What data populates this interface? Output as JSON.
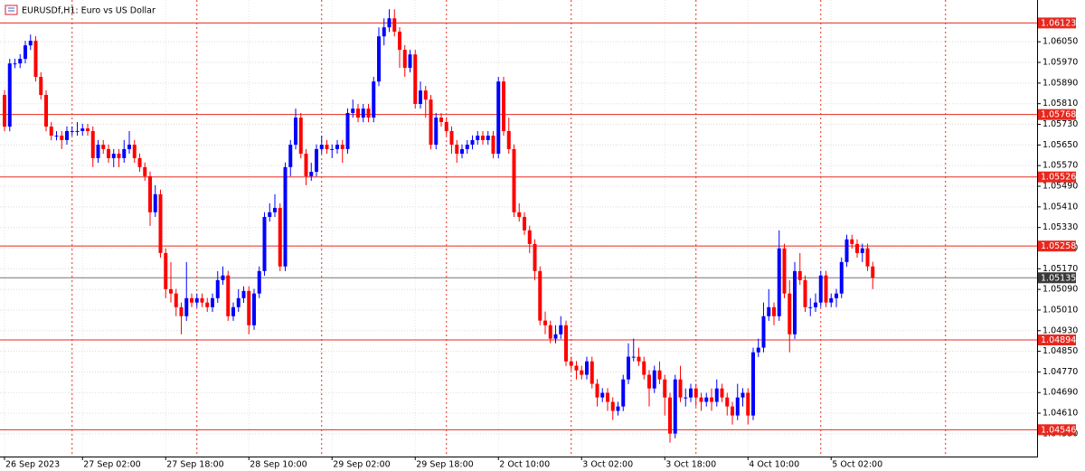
{
  "chart_data": {
    "type": "candlestick",
    "title": "EURUSDf,H1:  Euro vs US Dollar",
    "up_color": "#0000ff",
    "down_color": "#ff0000",
    "level_color": "#e8281e",
    "current_color": "#3a3a3a",
    "grid": true,
    "ylim": [
      1.04442,
      1.06212
    ],
    "yticks": [
      {
        "value": 1.0605,
        "label": "1.06050"
      },
      {
        "value": 1.0597,
        "label": "1.05970"
      },
      {
        "value": 1.0589,
        "label": "1.05890"
      },
      {
        "value": 1.0581,
        "label": "1.05810"
      },
      {
        "value": 1.0573,
        "label": "1.05730"
      },
      {
        "value": 1.0565,
        "label": "1.05650"
      },
      {
        "value": 1.0557,
        "label": "1.05570"
      },
      {
        "value": 1.0549,
        "label": "1.05490"
      },
      {
        "value": 1.0541,
        "label": "1.05410"
      },
      {
        "value": 1.0533,
        "label": "1.05330"
      },
      {
        "value": 1.0525,
        "label": "1.05250"
      },
      {
        "value": 1.0517,
        "label": "1.05170"
      },
      {
        "value": 1.0509,
        "label": "1.05090"
      },
      {
        "value": 1.0501,
        "label": "1.05010"
      },
      {
        "value": 1.0493,
        "label": "1.04930"
      },
      {
        "value": 1.0485,
        "label": "1.04850"
      },
      {
        "value": 1.0477,
        "label": "1.04770"
      },
      {
        "value": 1.0469,
        "label": "1.04690"
      },
      {
        "value": 1.0461,
        "label": "1.04610"
      },
      {
        "value": 1.0453,
        "label": "1.04530"
      }
    ],
    "levels": [
      1.06123,
      1.05768,
      1.05526,
      1.05258,
      1.04894,
      1.04546
    ],
    "current_price": 1.05135,
    "categories": [
      "26 Sep 2023",
      null,
      null,
      null,
      null,
      null,
      null,
      null,
      null,
      null,
      null,
      null,
      null,
      null,
      null,
      "27 Sep 02:00",
      null,
      null,
      null,
      null,
      null,
      null,
      null,
      null,
      null,
      null,
      null,
      null,
      null,
      null,
      null,
      "27 Sep 18:00",
      null,
      null,
      null,
      null,
      null,
      null,
      null,
      null,
      null,
      null,
      null,
      null,
      null,
      null,
      null,
      "28 Sep 10:00",
      null,
      null,
      null,
      null,
      null,
      null,
      null,
      null,
      null,
      null,
      null,
      null,
      null,
      null,
      null,
      "29 Sep 02:00",
      null,
      null,
      null,
      null,
      null,
      null,
      null,
      null,
      null,
      null,
      null,
      null,
      null,
      null,
      null,
      "29 Sep 18:00",
      null,
      null,
      null,
      null,
      null,
      null,
      null,
      null,
      null,
      null,
      null,
      null,
      null,
      null,
      null,
      "2 Oct 10:00",
      null,
      null,
      null,
      null,
      null,
      null,
      null,
      null,
      null,
      null,
      null,
      null,
      null,
      null,
      null,
      "3 Oct 02:00",
      null,
      null,
      null,
      null,
      null,
      null,
      null,
      null,
      null,
      null,
      null,
      null,
      null,
      null,
      null,
      "3 Oct 18:00",
      null,
      null,
      null,
      null,
      null,
      null,
      null,
      null,
      null,
      null,
      null,
      null,
      null,
      null,
      null,
      "4 Oct 10:00",
      null,
      null,
      null,
      null,
      null,
      null,
      null,
      null,
      null,
      null,
      null,
      null,
      null,
      null,
      null,
      "5 Oct 02:00",
      null,
      null,
      null,
      null,
      null,
      null,
      null,
      null
    ],
    "open": [
      1.05844,
      1.05721,
      1.05966,
      1.05966,
      1.05984,
      1.06036,
      1.06054,
      1.05914,
      1.05844,
      1.05721,
      1.05686,
      1.05686,
      1.05669,
      1.05704,
      1.05704,
      1.05704,
      1.05714,
      1.05704,
      1.05599,
      1.05651,
      1.05634,
      1.05599,
      1.05616,
      1.05599,
      1.05634,
      1.05651,
      1.05599,
      1.05564,
      1.05529,
      1.05389,
      1.05459,
      1.05231,
      1.05091,
      1.05074,
      1.05021,
      1.04986,
      1.05056,
      1.05039,
      1.05056,
      1.05039,
      1.05021,
      1.05056,
      1.05126,
      1.05144,
      1.04986,
      1.05021,
      1.05056,
      1.05084,
      1.04951,
      1.05074,
      1.05161,
      1.05371,
      1.05389,
      1.05406,
      1.05179,
      1.05564,
      1.05651,
      1.05756,
      1.05616,
      1.05529,
      1.05546,
      1.05634,
      1.05651,
      1.05634,
      1.05634,
      1.05651,
      1.05634,
      1.05774,
      1.05791,
      1.05756,
      1.05791,
      1.05756,
      1.05896,
      1.06071,
      1.06106,
      1.06141,
      1.06089,
      1.06019,
      1.05949,
      1.06001,
      1.05809,
      1.05861,
      1.05826,
      1.05651,
      1.05756,
      1.05739,
      1.05704,
      1.05651,
      1.05616,
      1.05634,
      1.05651,
      1.05669,
      1.05686,
      1.05669,
      1.05686,
      1.05616,
      1.05896,
      1.05704,
      1.05634,
      1.05389,
      1.05371,
      1.05319,
      1.05266,
      1.05161,
      1.04969,
      1.04951,
      1.04899,
      1.04916,
      1.04951,
      1.04811,
      1.04794,
      1.04776,
      1.04759,
      1.04811,
      1.04724,
      1.04671,
      1.04689,
      1.04654,
      1.04619,
      1.04636,
      1.04741,
      1.04829,
      1.04829,
      1.04811,
      1.04759,
      1.04706,
      1.04776,
      1.04741,
      1.04671,
      1.04531,
      1.04741,
      1.04671,
      1.04671,
      1.04706,
      1.04671,
      1.04654,
      1.04671,
      1.04654,
      1.04706,
      1.04671,
      1.04636,
      1.04601,
      1.04671,
      1.04689,
      1.04601,
      1.04846,
      1.04864,
      1.04986,
      1.05021,
      1.04986,
      1.05249,
      1.05074,
      1.04916,
      1.05161,
      1.05126,
      1.05021,
      1.05021,
      1.05039,
      1.05144,
      1.05039,
      1.05056,
      1.05074,
      1.05196,
      1.05284,
      1.05266,
      1.05231,
      1.05249,
      1.05179
    ],
    "high": [
      1.05862,
      1.05984,
      1.05984,
      1.06002,
      1.06054,
      1.06078,
      1.06072,
      1.05932,
      1.05862,
      1.05739,
      1.05704,
      1.05704,
      1.05722,
      1.05722,
      1.05739,
      1.05732,
      1.05732,
      1.05722,
      1.05669,
      1.05669,
      1.05652,
      1.05634,
      1.05634,
      1.05669,
      1.05704,
      1.05669,
      1.05617,
      1.05582,
      1.05547,
      1.05494,
      1.05477,
      1.05249,
      1.05196,
      1.05092,
      1.05039,
      1.05196,
      1.05074,
      1.05074,
      1.05074,
      1.05057,
      1.05074,
      1.05161,
      1.05179,
      1.05162,
      1.05039,
      1.05091,
      1.05102,
      1.05102,
      1.05092,
      1.05179,
      1.05389,
      1.05424,
      1.05459,
      1.05424,
      1.05582,
      1.05669,
      1.05791,
      1.05774,
      1.05634,
      1.05581,
      1.05652,
      1.05686,
      1.05669,
      1.05652,
      1.05669,
      1.05669,
      1.05792,
      1.05826,
      1.05809,
      1.05809,
      1.05809,
      1.05914,
      1.06106,
      1.06141,
      1.06176,
      1.06176,
      1.06107,
      1.06037,
      1.06019,
      1.06019,
      1.05896,
      1.05879,
      1.05844,
      1.05774,
      1.05774,
      1.05757,
      1.05722,
      1.05669,
      1.05652,
      1.05669,
      1.05687,
      1.05704,
      1.05704,
      1.05704,
      1.05704,
      1.05914,
      1.05914,
      1.05756,
      1.05652,
      1.05424,
      1.05389,
      1.05337,
      1.05284,
      1.05179,
      1.05004,
      1.04969,
      1.04951,
      1.04986,
      1.04969,
      1.04829,
      1.04812,
      1.04794,
      1.04829,
      1.04829,
      1.04742,
      1.04707,
      1.04707,
      1.04672,
      1.04654,
      1.04759,
      1.04881,
      1.04899,
      1.04864,
      1.04829,
      1.04777,
      1.04794,
      1.04811,
      1.04759,
      1.04689,
      1.04759,
      1.04794,
      1.04706,
      1.04724,
      1.04724,
      1.04689,
      1.04689,
      1.04706,
      1.04741,
      1.04724,
      1.04689,
      1.04654,
      1.04724,
      1.04707,
      1.04707,
      1.04864,
      1.04899,
      1.05039,
      1.05091,
      1.05039,
      1.05319,
      1.05267,
      1.05126,
      1.05196,
      1.05231,
      1.05144,
      1.05056,
      1.05074,
      1.05162,
      1.05162,
      1.05074,
      1.05092,
      1.05214,
      1.05302,
      1.05302,
      1.05284,
      1.05267,
      1.05267,
      1.05197
    ],
    "low": [
      1.05703,
      1.05703,
      1.05948,
      1.05948,
      1.05966,
      1.06018,
      1.05896,
      1.05826,
      1.05703,
      1.05668,
      1.05668,
      1.05634,
      1.05651,
      1.05686,
      1.05686,
      1.05686,
      1.05686,
      1.05564,
      1.05581,
      1.05616,
      1.05581,
      1.05564,
      1.05564,
      1.05581,
      1.05616,
      1.05581,
      1.05546,
      1.05511,
      1.05336,
      1.05371,
      1.05213,
      1.05056,
      1.05039,
      1.04986,
      1.04916,
      1.04968,
      1.05021,
      1.05021,
      1.05021,
      1.05003,
      1.05003,
      1.05038,
      1.05108,
      1.04968,
      1.04968,
      1.05003,
      1.05038,
      1.04916,
      1.04933,
      1.05056,
      1.05143,
      1.05353,
      1.05371,
      1.05161,
      1.05161,
      1.05529,
      1.05633,
      1.05598,
      1.05494,
      1.05511,
      1.05528,
      1.05616,
      1.05616,
      1.05599,
      1.05616,
      1.05581,
      1.05616,
      1.05756,
      1.05738,
      1.05738,
      1.05738,
      1.05738,
      1.05878,
      1.06036,
      1.06088,
      1.06071,
      1.05949,
      1.05914,
      1.05931,
      1.05791,
      1.05791,
      1.05756,
      1.05633,
      1.05633,
      1.05721,
      1.05686,
      1.05616,
      1.05581,
      1.05598,
      1.05616,
      1.05633,
      1.05651,
      1.05651,
      1.05651,
      1.05598,
      1.05598,
      1.05686,
      1.05616,
      1.05371,
      1.05353,
      1.05301,
      1.05231,
      1.05126,
      1.04951,
      1.04916,
      1.04881,
      1.04881,
      1.04898,
      1.04793,
      1.04776,
      1.04741,
      1.04741,
      1.04741,
      1.04706,
      1.04636,
      1.04653,
      1.04619,
      1.04584,
      1.04601,
      1.04618,
      1.04723,
      1.04811,
      1.04793,
      1.04741,
      1.04636,
      1.04688,
      1.04723,
      1.04601,
      1.04496,
      1.04513,
      1.04653,
      1.04636,
      1.04653,
      1.04636,
      1.04619,
      1.04636,
      1.04619,
      1.04636,
      1.04653,
      1.04601,
      1.04566,
      1.04583,
      1.04636,
      1.04566,
      1.04583,
      1.04828,
      1.04846,
      1.04968,
      1.04951,
      1.04968,
      1.05056,
      1.04846,
      1.04898,
      1.05108,
      1.05003,
      1.04986,
      1.05003,
      1.05021,
      1.05021,
      1.05021,
      1.05021,
      1.05056,
      1.05178,
      1.05248,
      1.05213,
      1.05196,
      1.05161,
      1.05091
    ],
    "close": [
      1.05721,
      1.05966,
      1.05966,
      1.05984,
      1.06036,
      1.06054,
      1.05914,
      1.05844,
      1.05721,
      1.05686,
      1.05686,
      1.05669,
      1.05704,
      1.05704,
      1.05704,
      1.05714,
      1.05704,
      1.05599,
      1.05651,
      1.05634,
      1.05599,
      1.05616,
      1.05599,
      1.05634,
      1.05651,
      1.05599,
      1.05564,
      1.05529,
      1.05389,
      1.05459,
      1.05231,
      1.05091,
      1.05074,
      1.05021,
      1.04986,
      1.05056,
      1.05039,
      1.05056,
      1.05039,
      1.05021,
      1.05056,
      1.05126,
      1.05144,
      1.04986,
      1.05021,
      1.05056,
      1.05084,
      1.04951,
      1.05074,
      1.05161,
      1.05371,
      1.05389,
      1.05406,
      1.05179,
      1.05564,
      1.05651,
      1.05756,
      1.05616,
      1.05529,
      1.05546,
      1.05634,
      1.05651,
      1.05634,
      1.05634,
      1.05651,
      1.05634,
      1.05774,
      1.05791,
      1.05756,
      1.05791,
      1.05756,
      1.05896,
      1.06071,
      1.06106,
      1.06141,
      1.06089,
      1.06019,
      1.05949,
      1.06001,
      1.05809,
      1.05861,
      1.05826,
      1.05651,
      1.05756,
      1.05739,
      1.05704,
      1.05651,
      1.05616,
      1.05634,
      1.05651,
      1.05669,
      1.05686,
      1.05669,
      1.05686,
      1.05616,
      1.05896,
      1.05704,
      1.05634,
      1.05389,
      1.05371,
      1.05319,
      1.05266,
      1.05161,
      1.04969,
      1.04951,
      1.04899,
      1.04916,
      1.04951,
      1.04811,
      1.04794,
      1.04776,
      1.04759,
      1.04811,
      1.04724,
      1.04671,
      1.04689,
      1.04654,
      1.04619,
      1.04636,
      1.04741,
      1.04829,
      1.04829,
      1.04811,
      1.04759,
      1.04706,
      1.04776,
      1.04741,
      1.04671,
      1.04531,
      1.04741,
      1.04671,
      1.04671,
      1.04706,
      1.04671,
      1.04654,
      1.04671,
      1.04654,
      1.04706,
      1.04671,
      1.04636,
      1.04601,
      1.04671,
      1.04689,
      1.04601,
      1.04846,
      1.04864,
      1.04986,
      1.05021,
      1.04986,
      1.05249,
      1.05074,
      1.04916,
      1.05161,
      1.05126,
      1.05021,
      1.05021,
      1.05039,
      1.05144,
      1.05039,
      1.05056,
      1.05074,
      1.05196,
      1.05284,
      1.05266,
      1.05231,
      1.05249,
      1.05179,
      1.05135
    ]
  }
}
